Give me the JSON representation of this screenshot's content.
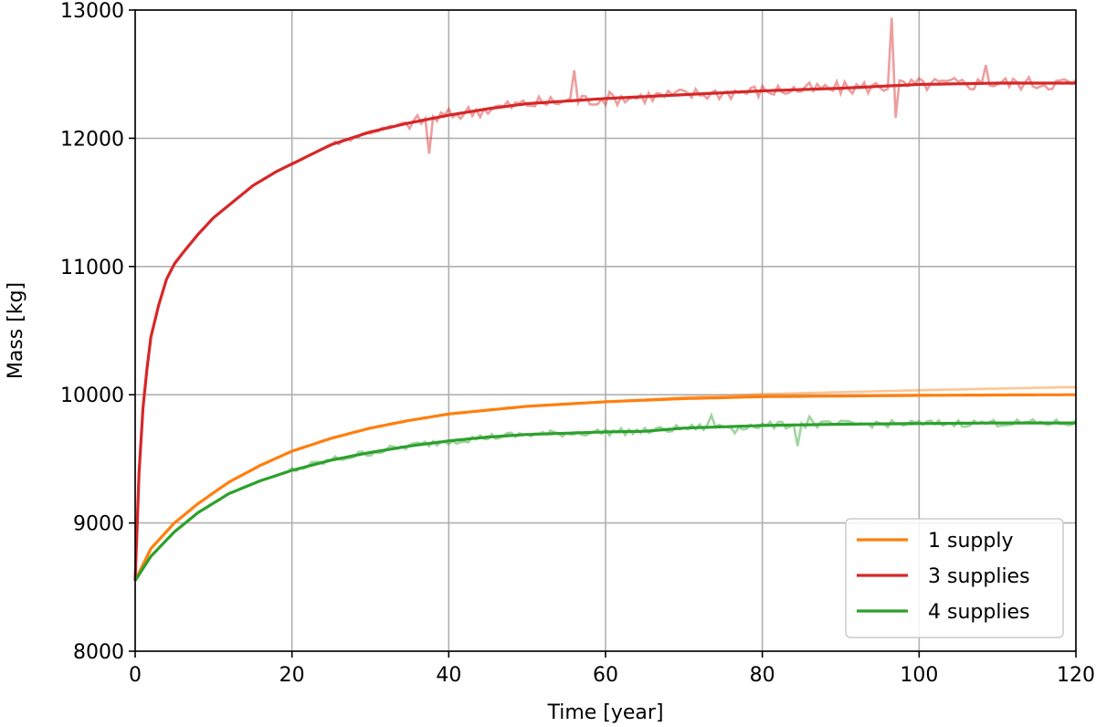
{
  "chart_data": {
    "type": "line",
    "title": "",
    "xlabel": "Time [year]",
    "ylabel": "Mass [kg]",
    "xlim": [
      0,
      120
    ],
    "ylim": [
      8000,
      13000
    ],
    "xticks": [
      0,
      20,
      40,
      60,
      80,
      100,
      120
    ],
    "yticks": [
      8000,
      9000,
      10000,
      11000,
      12000,
      13000
    ],
    "xtick_labels": [
      "0",
      "20",
      "40",
      "60",
      "80",
      "100",
      "120"
    ],
    "ytick_labels": [
      "8000",
      "9000",
      "10000",
      "11000",
      "12000",
      "13000"
    ],
    "grid": true,
    "legend_position": "bottom-right",
    "series": [
      {
        "name": "1 supply",
        "color": "#ff7f0e",
        "x": [
          0,
          2,
          5,
          8,
          12,
          16,
          20,
          25,
          30,
          35,
          40,
          45,
          50,
          60,
          70,
          80,
          90,
          100,
          110,
          120
        ],
        "y": [
          8550,
          8800,
          9000,
          9150,
          9320,
          9450,
          9560,
          9660,
          9740,
          9800,
          9850,
          9880,
          9910,
          9945,
          9970,
          9985,
          9990,
          9995,
          9998,
          10000
        ],
        "raw_y_end": 10060
      },
      {
        "name": "3 supplies",
        "color": "#d62728",
        "x": [
          0,
          0.5,
          1,
          1.5,
          2,
          3,
          4,
          5,
          6,
          8,
          10,
          12,
          15,
          18,
          20,
          25,
          30,
          35,
          40,
          45,
          50,
          60,
          70,
          80,
          90,
          100,
          110,
          120
        ],
        "y": [
          8550,
          9400,
          9900,
          10200,
          10450,
          10700,
          10900,
          11020,
          11100,
          11250,
          11380,
          11480,
          11630,
          11740,
          11800,
          11950,
          12050,
          12120,
          12180,
          12230,
          12270,
          12310,
          12340,
          12370,
          12390,
          12420,
          12430,
          12430
        ]
      },
      {
        "name": "4 supplies",
        "color": "#2ca02c",
        "x": [
          0,
          2,
          5,
          8,
          12,
          16,
          20,
          25,
          30,
          35,
          40,
          45,
          50,
          60,
          65,
          70,
          80,
          90,
          100,
          110,
          120
        ],
        "y": [
          8550,
          8740,
          8930,
          9080,
          9230,
          9330,
          9410,
          9490,
          9550,
          9600,
          9640,
          9670,
          9690,
          9710,
          9715,
          9740,
          9760,
          9770,
          9775,
          9780,
          9780
        ]
      }
    ]
  }
}
